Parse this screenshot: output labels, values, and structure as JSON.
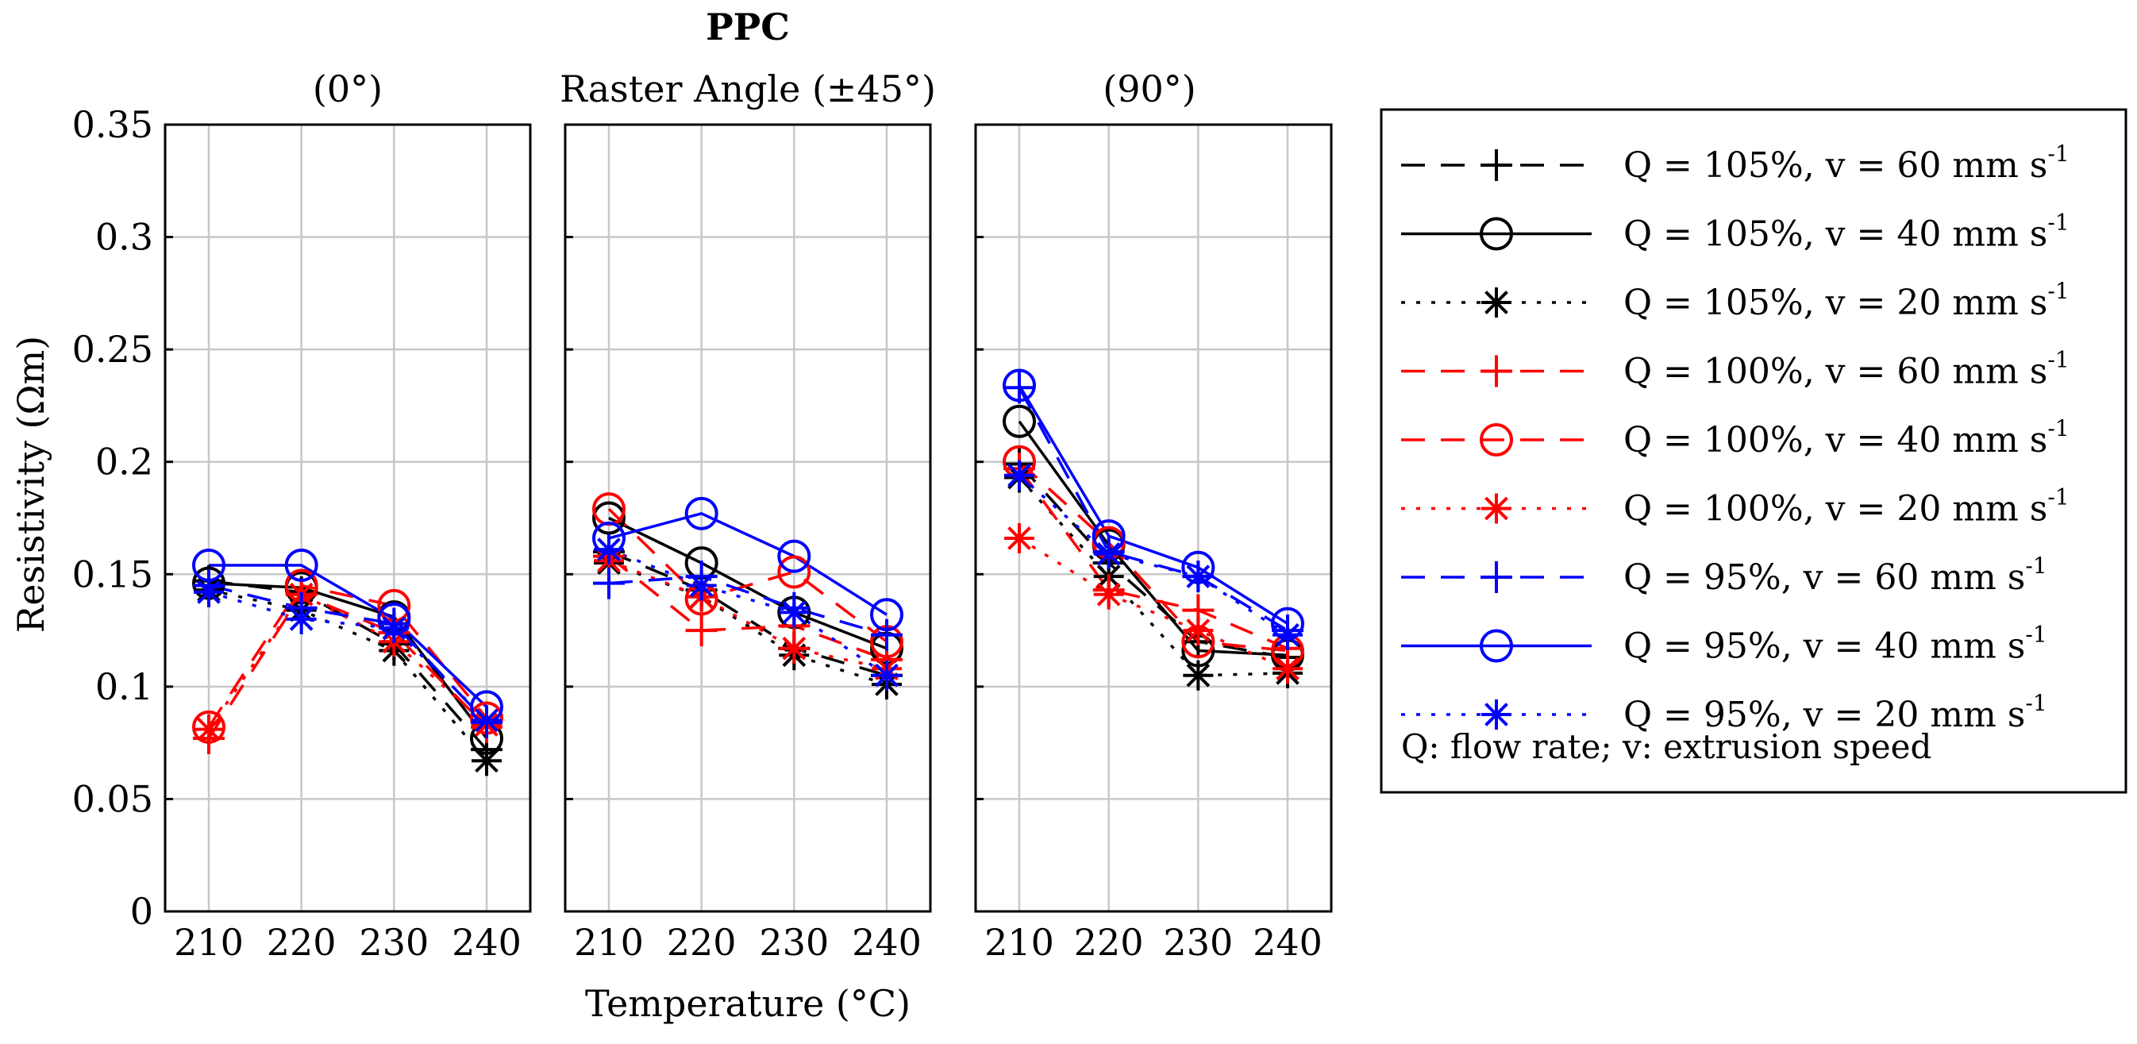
{
  "chart_data": {
    "type": "line",
    "suptitle": "PPC",
    "group_title": "Raster Angle (±45°)",
    "ylabel": "Resistivity (Ωm)",
    "xlabel": "Temperature (°C)",
    "ylim": [
      0,
      0.35
    ],
    "yticks": [
      0,
      0.05,
      0.1,
      0.15,
      0.2,
      0.25,
      0.3,
      0.35
    ],
    "ytick_labels": [
      "0",
      "0.05",
      "0.1",
      "0.15",
      "0.2",
      "0.25",
      "0.3",
      "0.35"
    ],
    "x": [
      210,
      220,
      230,
      240
    ],
    "xtick_labels": [
      "210",
      "220",
      "230",
      "240"
    ],
    "grid": true,
    "legend_note": "Q: flow rate; v: extrusion speed",
    "series_styles": [
      {
        "name": "Q = 105%, v = 60 mm s-1",
        "label_main": "Q = 105%, v = 60 mm s",
        "label_sup": "-1",
        "color": "#000000",
        "dash": "dashed",
        "marker": "plus"
      },
      {
        "name": "Q = 105%, v = 40 mm s-1",
        "label_main": "Q = 105%, v = 40 mm s",
        "label_sup": "-1",
        "color": "#000000",
        "dash": "solid",
        "marker": "circle"
      },
      {
        "name": "Q = 105%, v = 20 mm s-1",
        "label_main": "Q = 105%, v = 20 mm s",
        "label_sup": "-1",
        "color": "#000000",
        "dash": "dotted",
        "marker": "asterisk"
      },
      {
        "name": "Q = 100%, v = 60 mm s-1",
        "label_main": "Q = 100%, v = 60 mm s",
        "label_sup": "-1",
        "color": "#ff0000",
        "dash": "dashed",
        "marker": "plus"
      },
      {
        "name": "Q = 100%, v = 40 mm s-1",
        "label_main": "Q = 100%, v = 40 mm s",
        "label_sup": "-1",
        "color": "#ff0000",
        "dash": "dashed",
        "marker": "circle"
      },
      {
        "name": "Q = 100%, v = 20 mm s-1",
        "label_main": "Q = 100%, v = 20 mm s",
        "label_sup": "-1",
        "color": "#ff0000",
        "dash": "dotted",
        "marker": "asterisk"
      },
      {
        "name": "Q = 95%, v = 60 mm s-1",
        "label_main": "Q = 95%, v = 60 mm s",
        "label_sup": "-1",
        "color": "#0000ff",
        "dash": "dashed",
        "marker": "plus"
      },
      {
        "name": "Q = 95%, v = 40 mm s-1",
        "label_main": "Q = 95%, v = 40 mm s",
        "label_sup": "-1",
        "color": "#0000ff",
        "dash": "solid",
        "marker": "circle"
      },
      {
        "name": "Q = 95%, v = 20 mm s-1",
        "label_main": "Q = 95%, v = 20 mm s",
        "label_sup": "-1",
        "color": "#0000ff",
        "dash": "dotted",
        "marker": "asterisk"
      }
    ],
    "panels": [
      {
        "title": "(0°)",
        "series": [
          {
            "name": "Q = 105%, v = 60 mm s-1",
            "values": [
              0.147,
              0.142,
              0.119,
              0.072
            ]
          },
          {
            "name": "Q = 105%, v = 40 mm s-1",
            "values": [
              0.146,
              0.144,
              0.131,
              0.077
            ]
          },
          {
            "name": "Q = 105%, v = 20 mm s-1",
            "values": [
              0.143,
              0.134,
              0.116,
              0.067
            ]
          },
          {
            "name": "Q = 100%, v = 60 mm s-1",
            "values": [
              0.077,
              0.141,
              0.124,
              0.082
            ]
          },
          {
            "name": "Q = 100%, v = 40 mm s-1",
            "values": [
              0.082,
              0.145,
              0.136,
              0.086
            ]
          },
          {
            "name": "Q = 100%, v = 20 mm s-1",
            "values": [
              0.081,
              0.141,
              0.12,
              0.083
            ]
          },
          {
            "name": "Q = 95%, v = 60 mm s-1",
            "values": [
              0.145,
              0.135,
              0.128,
              0.084
            ]
          },
          {
            "name": "Q = 95%, v = 40 mm s-1",
            "values": [
              0.154,
              0.154,
              0.13,
              0.091
            ]
          },
          {
            "name": "Q = 95%, v = 20 mm s-1",
            "values": [
              0.142,
              0.13,
              0.126,
              0.085
            ]
          }
        ]
      },
      {
        "title": "",
        "series": [
          {
            "name": "Q = 105%, v = 60 mm s-1",
            "values": [
              0.16,
              0.143,
              0.117,
              0.105
            ]
          },
          {
            "name": "Q = 105%, v = 40 mm s-1",
            "values": [
              0.175,
              0.155,
              0.133,
              0.117
            ]
          },
          {
            "name": "Q = 105%, v = 20 mm s-1",
            "values": [
              0.155,
              0.14,
              0.114,
              0.101
            ]
          },
          {
            "name": "Q = 100%, v = 60 mm s-1",
            "values": [
              0.158,
              0.125,
              0.127,
              0.112
            ]
          },
          {
            "name": "Q = 100%, v = 40 mm s-1",
            "values": [
              0.179,
              0.139,
              0.151,
              0.12
            ]
          },
          {
            "name": "Q = 100%, v = 20 mm s-1",
            "values": [
              0.156,
              0.14,
              0.117,
              0.108
            ]
          },
          {
            "name": "Q = 95%, v = 60 mm s-1",
            "values": [
              0.146,
              0.149,
              0.135,
              0.123
            ]
          },
          {
            "name": "Q = 95%, v = 40 mm s-1",
            "values": [
              0.166,
              0.177,
              0.158,
              0.132
            ]
          },
          {
            "name": "Q = 95%, v = 20 mm s-1",
            "values": [
              0.161,
              0.145,
              0.133,
              0.105
            ]
          }
        ]
      },
      {
        "title": "(90°)",
        "series": [
          {
            "name": "Q = 105%, v = 60 mm s-1",
            "values": [
              0.199,
              0.155,
              0.12,
              0.113
            ]
          },
          {
            "name": "Q = 105%, v = 40 mm s-1",
            "values": [
              0.218,
              0.163,
              0.116,
              0.114
            ]
          },
          {
            "name": "Q = 105%, v = 20 mm s-1",
            "values": [
              0.193,
              0.149,
              0.105,
              0.106
            ]
          },
          {
            "name": "Q = 100%, v = 60 mm s-1",
            "values": [
              0.197,
              0.143,
              0.134,
              0.117
            ]
          },
          {
            "name": "Q = 100%, v = 40 mm s-1",
            "values": [
              0.2,
              0.164,
              0.12,
              0.116
            ]
          },
          {
            "name": "Q = 100%, v = 20 mm s-1",
            "values": [
              0.166,
              0.141,
              0.125,
              0.108
            ]
          },
          {
            "name": "Q = 95%, v = 60 mm s-1",
            "values": [
              0.233,
              0.16,
              0.149,
              0.125
            ]
          },
          {
            "name": "Q = 95%, v = 40 mm s-1",
            "values": [
              0.234,
              0.167,
              0.153,
              0.128
            ]
          },
          {
            "name": "Q = 95%, v = 20 mm s-1",
            "values": [
              0.194,
              0.159,
              0.149,
              0.123
            ]
          }
        ]
      }
    ]
  }
}
